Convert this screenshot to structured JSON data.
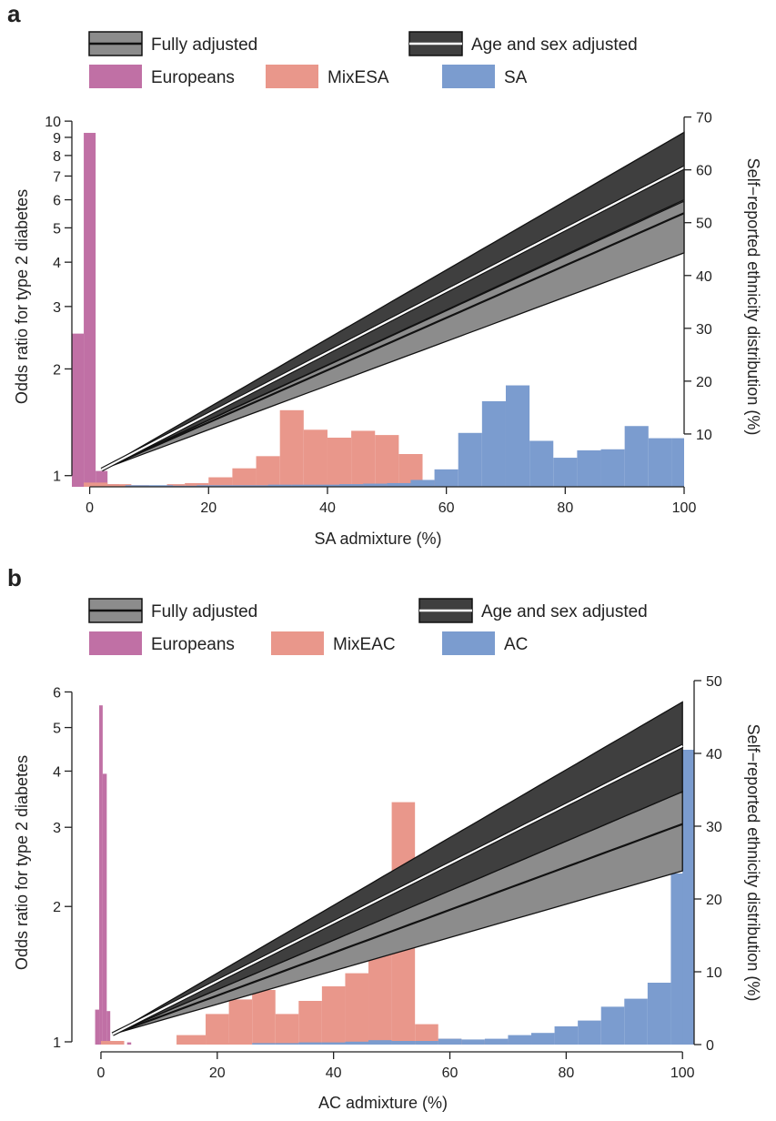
{
  "figure": {
    "panels": [
      {
        "letter": "a",
        "legend": [
          {
            "label": "Fully adjusted",
            "kind": "band-grey"
          },
          {
            "label": "Age and sex adjusted",
            "kind": "band-black"
          },
          {
            "label": "Europeans",
            "kind": "swatch",
            "color": "#c070a5"
          },
          {
            "label": "MixESA",
            "kind": "swatch",
            "color": "#e9978b"
          },
          {
            "label": "SA",
            "kind": "swatch",
            "color": "#7b9ccf"
          }
        ],
        "xlabel": "SA admixture (%)",
        "ylabel_left": "Odds ratio for type 2 diabetes",
        "ylabel_right": "Self−reported ethnicity distribution (%)"
      },
      {
        "letter": "b",
        "legend": [
          {
            "label": "Fully adjusted",
            "kind": "band-grey"
          },
          {
            "label": "Age and sex adjusted",
            "kind": "band-black"
          },
          {
            "label": "Europeans",
            "kind": "swatch",
            "color": "#c070a5"
          },
          {
            "label": "MixEAC",
            "kind": "swatch",
            "color": "#e9978b"
          },
          {
            "label": "AC",
            "kind": "swatch",
            "color": "#7b9ccf"
          }
        ],
        "xlabel": "AC admixture (%)",
        "ylabel_left": "Odds ratio for type 2 diabetes",
        "ylabel_right": "Self−reported ethnicity distribution (%)"
      }
    ]
  },
  "chart_data": [
    {
      "type": "line",
      "panel": "a",
      "x_axis": {
        "label": "SA admixture (%)",
        "range": [
          -3,
          100
        ],
        "ticks": [
          0,
          20,
          40,
          60,
          80,
          100
        ]
      },
      "y_left": {
        "label": "Odds ratio for type 2 diabetes",
        "scale": "log",
        "range": [
          0.93,
          11
        ],
        "ticks": [
          1,
          2,
          3,
          4,
          5,
          6,
          7,
          8,
          9,
          10
        ]
      },
      "y_right": {
        "label": "Self−reported ethnicity distribution (%)",
        "range": [
          0,
          72
        ],
        "ticks": [
          10,
          20,
          30,
          40,
          50,
          60,
          70
        ]
      },
      "grid": false,
      "legend_position": "top",
      "series": [
        {
          "name": "Fully adjusted",
          "kind": "or_curve",
          "x": [
            2,
            100
          ],
          "estimate": [
            1.04,
            5.5
          ],
          "lower": [
            1.04,
            4.25
          ],
          "upper": [
            1.04,
            5.95
          ],
          "band_color": "#8c8c8c",
          "line_color": "#111111"
        },
        {
          "name": "Age and sex adjusted",
          "kind": "or_curve",
          "x": [
            2,
            100
          ],
          "estimate": [
            1.04,
            7.4
          ],
          "lower": [
            1.04,
            6.0
          ],
          "upper": [
            1.04,
            9.3
          ],
          "band_color": "#3f3f3f",
          "line_color": "#ffffff"
        },
        {
          "name": "Europeans",
          "kind": "histogram",
          "color": "#c070a5",
          "bins": [
            [
              -3,
              -1,
              29
            ],
            [
              -1,
              1,
              67
            ],
            [
              1,
              3,
              3
            ],
            [
              3,
              5,
              0.5
            ],
            [
              5,
              7,
              0.3
            ],
            [
              12,
              16,
              0.2
            ],
            [
              54,
              58,
              0.2
            ],
            [
              86,
              88,
              0.3
            ]
          ]
        },
        {
          "name": "MixESA",
          "kind": "histogram",
          "color": "#e9978b",
          "bins": [
            [
              -1,
              3,
              0.8
            ],
            [
              3,
              7,
              0.5
            ],
            [
              7,
              10,
              0.3
            ],
            [
              10,
              13,
              0.2
            ],
            [
              13,
              16,
              0.5
            ],
            [
              16,
              20,
              0.7
            ],
            [
              20,
              24,
              1.8
            ],
            [
              24,
              28,
              3.5
            ],
            [
              28,
              32,
              5.8
            ],
            [
              32,
              36,
              14.5
            ],
            [
              36,
              40,
              10.8
            ],
            [
              40,
              44,
              9.3
            ],
            [
              44,
              48,
              10.6
            ],
            [
              48,
              52,
              9.8
            ],
            [
              52,
              56,
              6.2
            ],
            [
              56,
              60,
              1.2
            ]
          ]
        },
        {
          "name": "SA",
          "kind": "histogram",
          "color": "#7b9ccf",
          "bins": [
            [
              6,
              10,
              0.3
            ],
            [
              10,
              14,
              0.3
            ],
            [
              14,
              18,
              0.2
            ],
            [
              18,
              22,
              0.3
            ],
            [
              22,
              26,
              0.3
            ],
            [
              26,
              30,
              0.3
            ],
            [
              30,
              34,
              0.4
            ],
            [
              34,
              38,
              0.4
            ],
            [
              38,
              42,
              0.4
            ],
            [
              42,
              46,
              0.5
            ],
            [
              46,
              50,
              0.6
            ],
            [
              50,
              54,
              0.7
            ],
            [
              54,
              58,
              1.3
            ],
            [
              58,
              62,
              3.3
            ],
            [
              62,
              66,
              10.2
            ],
            [
              66,
              70,
              16.2
            ],
            [
              70,
              74,
              19.2
            ],
            [
              74,
              78,
              8.7
            ],
            [
              78,
              82,
              5.5
            ],
            [
              82,
              86,
              6.9
            ],
            [
              86,
              90,
              7.1
            ],
            [
              90,
              94,
              11.5
            ],
            [
              94,
              98,
              9.2
            ],
            [
              98,
              100,
              9.2
            ]
          ]
        }
      ]
    },
    {
      "type": "line",
      "panel": "b",
      "x_axis": {
        "label": "AC admixture (%)",
        "range": [
          -5,
          102
        ],
        "ticks": [
          0,
          20,
          40,
          60,
          80,
          100
        ]
      },
      "y_left": {
        "label": "Odds ratio for type 2 diabetes",
        "scale": "log",
        "range": [
          0.95,
          6.6
        ],
        "ticks": [
          1,
          2,
          3,
          4,
          5,
          6
        ]
      },
      "y_right": {
        "label": "Self−reported ethnicity distribution (%)",
        "range": [
          -1,
          51
        ],
        "ticks": [
          0,
          10,
          20,
          30,
          40,
          50
        ]
      },
      "grid": false,
      "legend_position": "top",
      "series": [
        {
          "name": "Fully adjusted",
          "kind": "or_curve",
          "x": [
            2,
            100
          ],
          "estimate": [
            1.04,
            3.05
          ],
          "lower": [
            1.04,
            2.4
          ],
          "upper": [
            1.04,
            3.6
          ],
          "band_color": "#8c8c8c",
          "line_color": "#111111"
        },
        {
          "name": "Age and sex adjusted",
          "kind": "or_curve",
          "x": [
            2,
            100
          ],
          "estimate": [
            1.04,
            4.55
          ],
          "lower": [
            1.04,
            3.6
          ],
          "upper": [
            1.04,
            5.7
          ],
          "band_color": "#3f3f3f",
          "line_color": "#ffffff"
        },
        {
          "name": "Europeans",
          "kind": "histogram",
          "color": "#c070a5",
          "bins": [
            [
              -1,
              -0.3,
              4.8
            ],
            [
              -0.3,
              0.3,
              46.6
            ],
            [
              0.3,
              1,
              37.2
            ],
            [
              1,
              1.6,
              4.6
            ],
            [
              4.5,
              5.2,
              0.3
            ],
            [
              22,
              23,
              0.2
            ]
          ]
        },
        {
          "name": "MixEAC",
          "kind": "histogram",
          "color": "#e9978b",
          "bins": [
            [
              0,
              4,
              0.5
            ],
            [
              13,
              18,
              1.3
            ],
            [
              18,
              22,
              4.2
            ],
            [
              22,
              26,
              6.2
            ],
            [
              26,
              30,
              7.5
            ],
            [
              30,
              34,
              4.2
            ],
            [
              34,
              38,
              6.0
            ],
            [
              38,
              42,
              8.0
            ],
            [
              42,
              46,
              9.8
            ],
            [
              46,
              50,
              13.5
            ],
            [
              50,
              54,
              33.3
            ],
            [
              54,
              58,
              2.8
            ],
            [
              58,
              62,
              0.8
            ],
            [
              62,
              66,
              0.5
            ],
            [
              66,
              70,
              0.4
            ],
            [
              70,
              74,
              0.4
            ]
          ]
        },
        {
          "name": "AC",
          "kind": "histogram",
          "color": "#7b9ccf",
          "bins": [
            [
              26,
              30,
              0.2
            ],
            [
              30,
              34,
              0.2
            ],
            [
              34,
              38,
              0.3
            ],
            [
              38,
              42,
              0.3
            ],
            [
              42,
              46,
              0.4
            ],
            [
              46,
              50,
              0.6
            ],
            [
              50,
              54,
              0.5
            ],
            [
              54,
              58,
              0.5
            ],
            [
              58,
              62,
              0.8
            ],
            [
              62,
              66,
              0.7
            ],
            [
              66,
              70,
              0.8
            ],
            [
              70,
              74,
              1.3
            ],
            [
              74,
              78,
              1.6
            ],
            [
              78,
              82,
              2.5
            ],
            [
              82,
              86,
              3.3
            ],
            [
              86,
              90,
              5.2
            ],
            [
              90,
              94,
              6.3
            ],
            [
              94,
              98,
              8.5
            ],
            [
              98,
              102,
              23.5
            ],
            [
              100,
              102,
              40.5
            ]
          ]
        }
      ]
    }
  ]
}
